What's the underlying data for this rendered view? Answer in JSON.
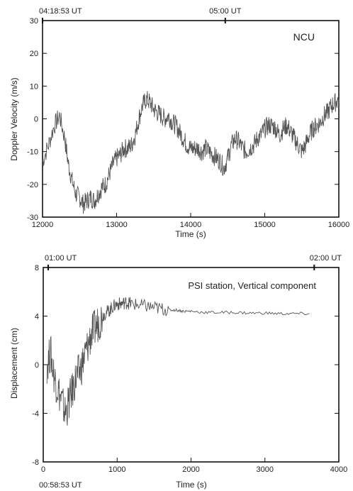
{
  "chart_data": [
    {
      "type": "line",
      "title": "",
      "annotation": "NCU",
      "xlabel": "Time (s)",
      "ylabel": "Doppler Velocity (m/s)",
      "xlim": [
        12000,
        16000
      ],
      "ylim": [
        -30,
        30
      ],
      "xticks": [
        "12000",
        "13000",
        "14000",
        "15000",
        "16000"
      ],
      "yticks": [
        "-30",
        "-20",
        "-10",
        "0",
        "10",
        "20",
        "30"
      ],
      "top_axis_labels": [
        "04:18:53 UT",
        "05:00 UT"
      ],
      "top_axis_positions": [
        12000,
        14467
      ],
      "series": [
        {
          "x": [
            12000,
            12080,
            12160,
            12230,
            12300,
            12350,
            12400,
            12450,
            12500,
            12550,
            12600,
            12650,
            12700,
            12750,
            12800,
            12850,
            12900,
            12950,
            13000,
            13050,
            13100,
            13150,
            13200,
            13250,
            13300,
            13350,
            13400,
            13450,
            13500,
            13550,
            13600,
            13650,
            13700,
            13750,
            13800,
            13850,
            13900,
            13950,
            14000,
            14050,
            14100,
            14150,
            14200,
            14250,
            14300,
            14350,
            14400,
            14450,
            14500,
            14550,
            14600,
            14650,
            14700,
            14750,
            14800,
            14850,
            14900,
            14950,
            15000,
            15050,
            15100,
            15150,
            15200,
            15250,
            15300,
            15350,
            15400,
            15450,
            15500,
            15550,
            15600,
            15650,
            15700,
            15750,
            15800,
            15850,
            15900,
            15950,
            16000
          ],
          "values": [
            -13,
            -8,
            -2,
            1,
            -6,
            -14,
            -19,
            -23,
            -24,
            -26,
            -25,
            -24,
            -25,
            -23,
            -21,
            -20,
            -17,
            -14,
            -12,
            -11,
            -9,
            -9,
            -8,
            -5,
            0,
            4,
            6,
            5,
            3,
            2,
            1,
            0,
            1,
            -1,
            -2,
            -4,
            -6,
            -8,
            -9,
            -9,
            -9,
            -10,
            -9,
            -10,
            -11,
            -12,
            -13,
            -15,
            -12,
            -8,
            -6,
            -7,
            -9,
            -10,
            -9,
            -8,
            -6,
            -5,
            -3,
            -2,
            -2,
            -3,
            -5,
            -3,
            -2,
            -4,
            -6,
            -8,
            -10,
            -8,
            -5,
            -3,
            -2,
            -1,
            1,
            2,
            4,
            5,
            6
          ]
        }
      ]
    },
    {
      "type": "line",
      "title": "",
      "annotation": "PSI station, Vertical component",
      "xlabel": "Time (s)",
      "ylabel": "Displacement (cm)",
      "xlim": [
        0,
        4000
      ],
      "ylim": [
        -8,
        8
      ],
      "xticks": [
        "0",
        "1000",
        "2000",
        "3000",
        "4000"
      ],
      "yticks": [
        "-8",
        "-4",
        "0",
        "4",
        "8"
      ],
      "top_axis_labels": [
        "01:00 UT",
        "02:00 UT"
      ],
      "top_axis_positions": [
        67,
        3667
      ],
      "bottom_extra_label": "00:58:53 UT",
      "series": [
        {
          "x": [
            50,
            100,
            150,
            200,
            250,
            300,
            350,
            400,
            450,
            500,
            550,
            600,
            650,
            700,
            750,
            800,
            850,
            900,
            950,
            1000,
            1050,
            1100,
            1150,
            1200,
            1300,
            1400,
            1500,
            1600,
            1700,
            1800,
            1900,
            2000,
            2200,
            2400,
            2600,
            2800,
            3000,
            3200,
            3400,
            3600
          ],
          "values": [
            0,
            1,
            -1,
            -2,
            -3,
            -4,
            -3,
            -2,
            -1,
            -0.5,
            0.5,
            1.5,
            2.5,
            3,
            3.5,
            4,
            4.3,
            4.5,
            4.8,
            5,
            5,
            5.1,
            5.1,
            5,
            4.9,
            4.8,
            4.7,
            4.6,
            4.5,
            4.5,
            4.4,
            4.4,
            4.3,
            4.3,
            4.3,
            4.25,
            4.25,
            4.2,
            4.2,
            4.2
          ]
        }
      ]
    }
  ]
}
